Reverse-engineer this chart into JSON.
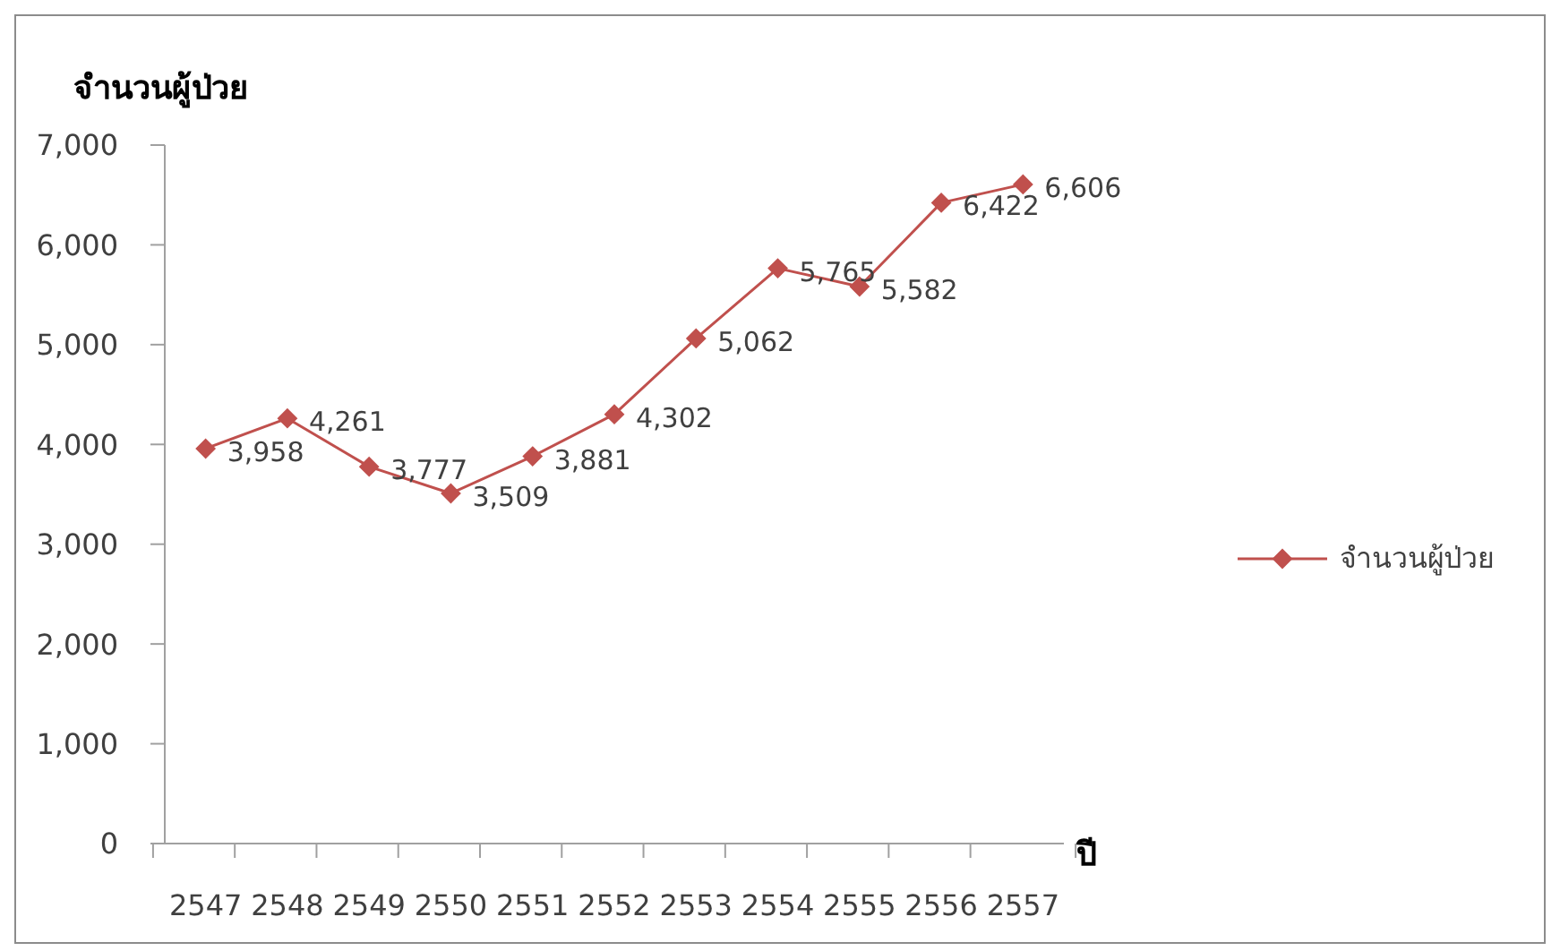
{
  "chart_data": {
    "type": "line",
    "ylabel": "จำนวนผู้ป่วย",
    "xlabel": "ปี",
    "categories": [
      "2547",
      "2548",
      "2549",
      "2550",
      "2551",
      "2552",
      "2553",
      "2554",
      "2555",
      "2556",
      "2557"
    ],
    "series": [
      {
        "name": "จำนวนผู้ป่วย",
        "color": "#c0504d",
        "values": [
          3958,
          4261,
          3777,
          3509,
          3881,
          4302,
          5062,
          5765,
          5582,
          6422,
          6606
        ],
        "value_labels": [
          "3,958",
          "4,261",
          "3,777",
          "3,509",
          "3,881",
          "4,302",
          "5,062",
          "5,765",
          "5,582",
          "6,422",
          "6,606"
        ]
      }
    ],
    "ylim": [
      0,
      7000
    ],
    "yticks": [
      0,
      {
        "value": 1000,
        "label": "1,000"
      },
      {
        "value": 2000,
        "label": "2,000"
      },
      {
        "value": 3000,
        "label": "3,000"
      },
      {
        "value": 4000,
        "label": "4,000"
      },
      {
        "value": 5000,
        "label": "5,000"
      },
      {
        "value": 6000,
        "label": "6,000"
      },
      {
        "value": 7000,
        "label": "7,000"
      }
    ],
    "legend": "right",
    "marker": "diamond",
    "line_style": "solid"
  }
}
